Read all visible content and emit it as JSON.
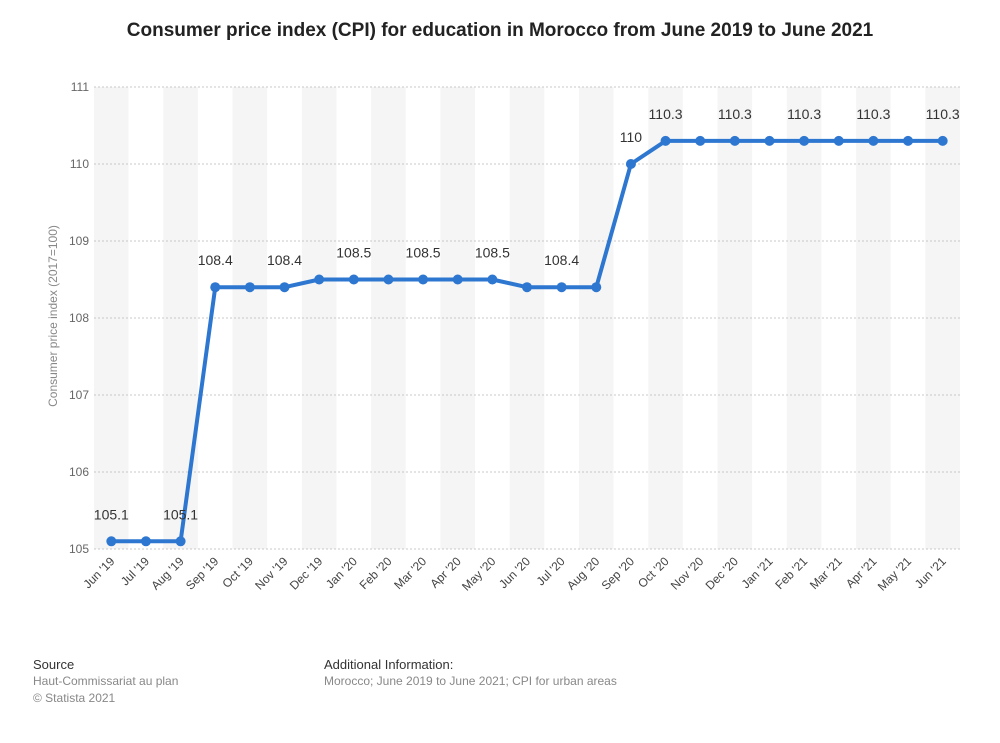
{
  "chart_data": {
    "type": "line",
    "title": "Consumer price index (CPI) for education in Morocco from June 2019 to June 2021",
    "ylabel": "Consumer price index (2017=100)",
    "xlabel": "",
    "ylim": [
      105,
      111
    ],
    "yticks": [
      "105",
      "106",
      "107",
      "108",
      "109",
      "110",
      "111"
    ],
    "categories": [
      "Jun '19",
      "Jul '19",
      "Aug '19",
      "Sep '19",
      "Oct '19",
      "Nov '19",
      "Dec '19",
      "Jan '20",
      "Feb '20",
      "Mar '20",
      "Apr '20",
      "May '20",
      "Jun '20",
      "Jul '20",
      "Aug '20",
      "Sep '20",
      "Oct '20",
      "Nov '20",
      "Dec '20",
      "Jan '21",
      "Feb '21",
      "Mar '21",
      "Apr '21",
      "May '21",
      "Jun '21"
    ],
    "values": [
      105.1,
      105.1,
      105.1,
      108.4,
      108.4,
      108.4,
      108.5,
      108.5,
      108.5,
      108.5,
      108.5,
      108.5,
      108.4,
      108.4,
      108.4,
      110,
      110.3,
      110.3,
      110.3,
      110.3,
      110.3,
      110.3,
      110.3,
      110.3,
      110.3
    ],
    "data_labels": [
      "105.1",
      "",
      "105.1",
      "108.4",
      "",
      "108.4",
      "",
      "108.5",
      "",
      "108.5",
      "",
      "108.5",
      "",
      "108.4",
      "",
      "110",
      "110.3",
      "",
      "110.3",
      "",
      "110.3",
      "",
      "110.3",
      "",
      "110.3"
    ],
    "series_color": "#2e77d0",
    "grid": true,
    "band_colors": [
      "#f5f5f5",
      "#ffffff"
    ]
  },
  "footer": {
    "source_heading": "Source",
    "source_lines": [
      "Haut-Commissariat au plan",
      "© Statista 2021"
    ],
    "info_heading": "Additional Information:",
    "info_text": "Morocco; June 2019 to June 2021; CPI for urban areas"
  }
}
